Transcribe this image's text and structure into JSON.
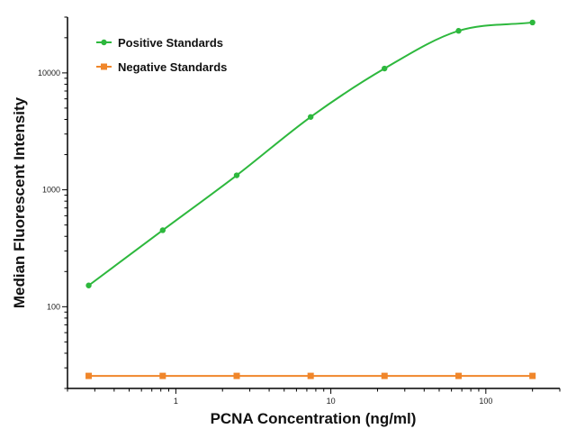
{
  "chart_data": {
    "type": "line",
    "xlabel": "PCNA Concentration (ng/ml)",
    "ylabel": "Median Fluorescent Intensity",
    "x_scale": "log",
    "y_scale": "log",
    "xlim": [
      0.2,
      300
    ],
    "ylim": [
      20,
      30000
    ],
    "x_ticks": [
      1,
      10,
      100
    ],
    "x_tick_labels": [
      "1",
      "10",
      "100"
    ],
    "y_ticks": [
      100,
      1000,
      10000
    ],
    "y_tick_labels": [
      "100",
      "1000",
      "10000"
    ],
    "grid": false,
    "legend_position": "top-left",
    "x": [
      0.274,
      0.823,
      2.47,
      7.41,
      22.2,
      66.7,
      200
    ],
    "series": [
      {
        "name": "Positive Standards",
        "color": "#2db83d",
        "marker": "circle",
        "values": [
          152,
          451,
          1330,
          4200,
          10900,
          22900,
          27000
        ]
      },
      {
        "name": "Negative Standards",
        "color": "#f0862a",
        "marker": "square",
        "values": [
          25.6,
          25.6,
          25.6,
          25.6,
          25.6,
          25.6,
          25.6
        ]
      }
    ]
  }
}
